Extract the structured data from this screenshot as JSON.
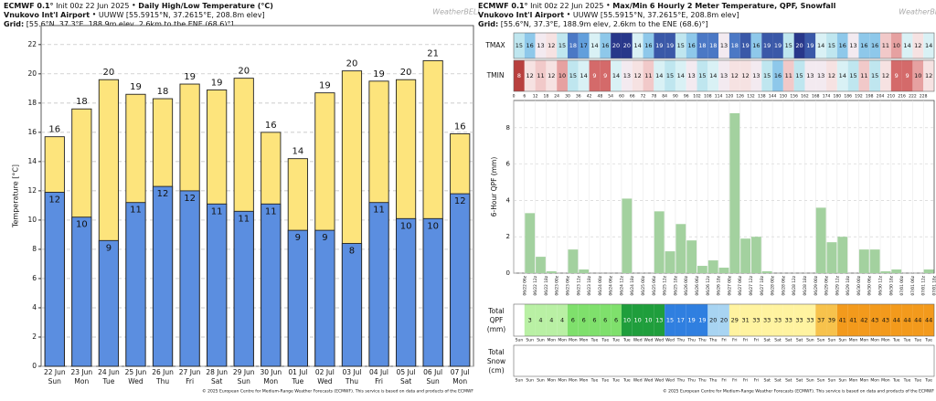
{
  "chart_data": [
    {
      "type": "bar",
      "model": "ECMWF 0.1°",
      "init": "Init 00z 22 Jun 2025",
      "title": "Daily High/Low Temperature (°C)",
      "station": "Vnukovo Int'l Airport",
      "station_info": "UUWW [55.5915°N, 37.2615°E, 208.8m elev]",
      "grid_label": "Grid:",
      "grid_info": "[55.6°N, 37.3°E, 188.9m elev, 2.6km to the ENE (68.6)°]",
      "logo": "WeatherBELL",
      "footer": "© 2025 European Centre for Medium-Range Weather Forecasts (ECMWF). This service is based on data and products of the ECMWF",
      "ylabel": "Temperature [°C]",
      "categories": [
        "22 Jun",
        "23 Jun",
        "24 Jun",
        "25 Jun",
        "26 Jun",
        "27 Jun",
        "28 Jun",
        "29 Jun",
        "30 Jun",
        "01 Jul",
        "02 Jul",
        "03 Jul",
        "04 Jul",
        "05 Jul",
        "06 Jul",
        "07 Jul"
      ],
      "weekdays": [
        "Sun",
        "Mon",
        "Tue",
        "Wed",
        "Thu",
        "Fri",
        "Sat",
        "Sun",
        "Mon",
        "Tue",
        "Wed",
        "Thu",
        "Fri",
        "Sat",
        "Sun",
        "Mon"
      ],
      "series": [
        {
          "name": "High",
          "color": "#fde47c",
          "values": [
            15.7,
            17.6,
            19.6,
            18.6,
            18.3,
            19.3,
            18.9,
            19.7,
            16.0,
            14.2,
            18.7,
            20.2,
            19.5,
            19.6,
            20.9,
            15.9
          ],
          "value_labels": [
            "16",
            "18",
            "20",
            "19",
            "18",
            "19",
            "19",
            "20",
            "16",
            "14",
            "19",
            "20",
            "19",
            "20",
            "21",
            "16"
          ]
        },
        {
          "name": "Low",
          "color": "#5b8ee0",
          "values": [
            11.9,
            10.2,
            8.6,
            11.2,
            12.3,
            12.0,
            11.1,
            10.6,
            11.1,
            9.3,
            9.3,
            8.4,
            11.2,
            10.1,
            10.1,
            11.8
          ],
          "value_labels": [
            "12",
            "10",
            "9",
            "11",
            "12",
            "12",
            "11",
            "11",
            "11",
            "9",
            "9",
            "8",
            "11",
            "10",
            "10",
            "12"
          ]
        }
      ],
      "ylim": [
        0,
        23.3
      ],
      "yticks": [
        0,
        2,
        4,
        6,
        8,
        10,
        12,
        14,
        16,
        18,
        20,
        22
      ],
      "grid": true
    },
    {
      "type": "meteogram",
      "model": "ECMWF 0.1°",
      "init": "Init 00z 22 Jun 2025",
      "title": "Max/Min 6 Hourly 2 Meter Temperature,  QPF,  Snowfall",
      "station": "Vnukovo Int'l Airport",
      "station_info": "UUWW [55.5915°N, 37.2615°E, 208.8m elev]",
      "grid_label": "Grid:",
      "grid_info": "[55.6°N, 37.3°E, 188.9m elev, 2.6km to the ENE (68.6)°]",
      "logo": "WeatherBELL",
      "footer": "© 2025 European Centre for Medium-Range Weather Forecasts (ECMWF). This service is based on data and products of the ECMWF",
      "tmax_label": "TMAX",
      "tmin_label": "TMIN",
      "tmax": [
        15,
        16,
        13,
        12,
        15,
        18,
        17,
        14,
        16,
        20,
        20,
        14,
        16,
        19,
        19,
        15,
        16,
        18,
        18,
        13,
        18,
        19,
        16,
        19,
        19,
        15,
        20,
        19,
        14,
        15,
        16,
        13,
        16,
        16,
        11,
        10,
        14,
        12,
        14
      ],
      "tmin": [
        8,
        12,
        11,
        12,
        10,
        15,
        14,
        9,
        9,
        14,
        13,
        12,
        11,
        14,
        15,
        14,
        13,
        15,
        14,
        13,
        12,
        12,
        13,
        15,
        16,
        11,
        15,
        13,
        13,
        12,
        14,
        15,
        11,
        15,
        12,
        9,
        9,
        10,
        12
      ],
      "hours": [
        0,
        6,
        12,
        18,
        24,
        30,
        36,
        42,
        48,
        54,
        60,
        66,
        72,
        78,
        84,
        90,
        96,
        102,
        108,
        114,
        120,
        126,
        132,
        138,
        144,
        150,
        156,
        162,
        168,
        174,
        180,
        186,
        192,
        198,
        204,
        210,
        216,
        222,
        228
      ],
      "ylabel": "6-Hour QPF (mm)",
      "qpf_color": "#a3d19f",
      "qpf": [
        0,
        3.3,
        0.9,
        0.1,
        0,
        1.3,
        0.2,
        0,
        0,
        0,
        4.1,
        0,
        0,
        3.4,
        1.2,
        2.7,
        1.8,
        0.4,
        0.7,
        0.3,
        8.8,
        1.9,
        2.0,
        0.1,
        0,
        0,
        0,
        0,
        3.6,
        1.7,
        2.0,
        0,
        1.3,
        1.3,
        0.1,
        0.2,
        0,
        0,
        0.2
      ],
      "ylim": [
        0,
        9.5
      ],
      "yticks": [
        0,
        2,
        4,
        6,
        8
      ],
      "grid": true,
      "dates": [
        "06/22 06z",
        "06/22 12z",
        "06/22 18z",
        "06/23 00z",
        "06/23 06z",
        "06/23 12z",
        "06/23 18z",
        "06/24 00z",
        "06/24 06z",
        "06/24 12z",
        "06/24 18z",
        "06/25 00z",
        "06/25 06z",
        "06/25 12z",
        "06/25 18z",
        "06/26 00z",
        "06/26 06z",
        "06/26 12z",
        "06/26 18z",
        "06/27 00z",
        "06/27 06z",
        "06/27 12z",
        "06/27 18z",
        "06/28 00z",
        "06/28 06z",
        "06/28 12z",
        "06/28 18z",
        "06/29 00z",
        "06/29 06z",
        "06/29 12z",
        "06/29 18z",
        "06/30 00z",
        "06/30 06z",
        "06/30 12z",
        "06/30 18z",
        "07/01 00z",
        "07/01 06z",
        "07/01 12z",
        "07/01 18z"
      ],
      "total_qpf_label": [
        "Total",
        "QPF",
        "(mm)"
      ],
      "total_qpf": [
        null,
        3,
        4,
        4,
        4,
        6,
        6,
        6,
        6,
        6,
        10,
        10,
        10,
        13,
        15,
        17,
        19,
        19,
        20,
        20,
        29,
        31,
        33,
        33,
        33,
        33,
        33,
        33,
        37,
        39,
        41,
        41,
        42,
        43,
        43,
        44,
        44,
        44,
        44
      ],
      "day_labels": [
        "Sun",
        "Sun",
        "Sun",
        "Mon",
        "Mon",
        "Mon",
        "Mon",
        "Tue",
        "Tue",
        "Tue",
        "Tue",
        "Wed",
        "Wed",
        "Wed",
        "Wed",
        "Thu",
        "Thu",
        "Thu",
        "Thu",
        "Fri",
        "Fri",
        "Fri",
        "Fri",
        "Sat",
        "Sat",
        "Sat",
        "Sat",
        "Sun",
        "Sun",
        "Sun",
        "Sun",
        "Mon",
        "Mon",
        "Mon",
        "Mon",
        "Tue",
        "Tue",
        "Tue",
        "Tue"
      ],
      "total_snow_label": [
        "Total",
        "Snow",
        "(cm)"
      ]
    }
  ]
}
